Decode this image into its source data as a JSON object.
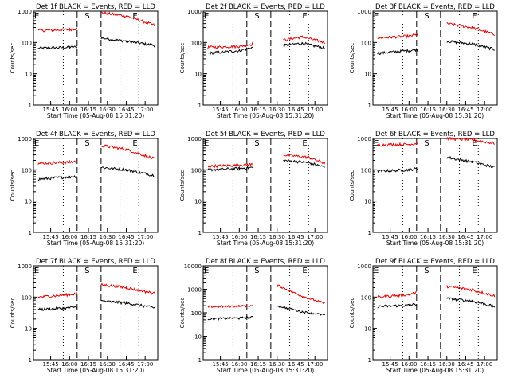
{
  "figure": {
    "xlabel": "Start Time (05-Aug-08 15:31:20)",
    "ylabel": "Counts/sec",
    "xtick_labels": [
      "15:45",
      "16:00",
      "16:15",
      "16:30",
      "16:45",
      "17:00"
    ],
    "colors": {
      "events": "#000000",
      "lld": "#e00000"
    },
    "markers": [
      "E",
      "S",
      "E"
    ]
  },
  "chart_data": [
    {
      "type": "line",
      "title": "Det 1f BLACK = Events, RED = LLD",
      "ylog": true,
      "yticks": [
        "1",
        "10",
        "100",
        "1000"
      ],
      "ylim": [
        1,
        1000
      ],
      "x_range": [
        "15:31:20",
        "17:10:00"
      ],
      "series": [
        {
          "color": "#000000",
          "values": [
            {
              "x": "15:35",
              "y": 65
            },
            {
              "x": "16:00",
              "y": 70
            },
            {
              "x": "16:06",
              "y": 72
            },
            {
              "x": "16:25",
              "y": 140
            },
            {
              "x": "16:45",
              "y": 110
            },
            {
              "x": "17:08",
              "y": 80
            }
          ]
        },
        {
          "color": "#e00000",
          "values": [
            {
              "x": "15:35",
              "y": 240
            },
            {
              "x": "16:00",
              "y": 260
            },
            {
              "x": "16:06",
              "y": 280
            },
            {
              "x": "16:25",
              "y": 900
            },
            {
              "x": "16:45",
              "y": 700
            },
            {
              "x": "17:08",
              "y": 350
            }
          ]
        }
      ]
    },
    {
      "type": "line",
      "title": "Det 2f BLACK = Events, RED = LLD",
      "ylog": true,
      "yticks": [
        "1",
        "10",
        "100",
        "1000"
      ],
      "ylim": [
        1,
        1000
      ],
      "x_range": [
        "15:31:20",
        "17:10:00"
      ],
      "series": [
        {
          "color": "#000000",
          "values": [
            {
              "x": "15:35",
              "y": 45
            },
            {
              "x": "16:00",
              "y": 55
            },
            {
              "x": "16:11",
              "y": 70
            },
            {
              "x": "16:35",
              "y": 80
            },
            {
              "x": "16:50",
              "y": 95
            },
            {
              "x": "17:08",
              "y": 65
            }
          ]
        },
        {
          "color": "#e00000",
          "values": [
            {
              "x": "15:35",
              "y": 70
            },
            {
              "x": "16:00",
              "y": 75
            },
            {
              "x": "16:11",
              "y": 90
            },
            {
              "x": "16:35",
              "y": 120
            },
            {
              "x": "16:50",
              "y": 150
            },
            {
              "x": "17:08",
              "y": 100
            }
          ]
        }
      ]
    },
    {
      "type": "line",
      "title": "Det 3f BLACK = Events, RED = LLD",
      "ylog": true,
      "yticks": [
        "1",
        "10",
        "100",
        "1000"
      ],
      "ylim": [
        1,
        1000
      ],
      "x_range": [
        "15:31:20",
        "17:10:00"
      ],
      "series": [
        {
          "color": "#000000",
          "values": [
            {
              "x": "15:35",
              "y": 45
            },
            {
              "x": "16:00",
              "y": 55
            },
            {
              "x": "16:07",
              "y": 60
            },
            {
              "x": "16:30",
              "y": 110
            },
            {
              "x": "16:50",
              "y": 90
            },
            {
              "x": "17:08",
              "y": 60
            }
          ]
        },
        {
          "color": "#e00000",
          "values": [
            {
              "x": "15:35",
              "y": 140
            },
            {
              "x": "16:00",
              "y": 160
            },
            {
              "x": "16:07",
              "y": 180
            },
            {
              "x": "16:30",
              "y": 400
            },
            {
              "x": "16:50",
              "y": 300
            },
            {
              "x": "17:08",
              "y": 180
            }
          ]
        }
      ]
    },
    {
      "type": "line",
      "title": "Det 4f BLACK = Events, RED = LLD",
      "ylog": true,
      "yticks": [
        "1",
        "10",
        "100",
        "1000"
      ],
      "ylim": [
        1,
        1000
      ],
      "x_range": [
        "15:31:20",
        "17:10:00"
      ],
      "series": [
        {
          "color": "#000000",
          "values": [
            {
              "x": "15:35",
              "y": 50
            },
            {
              "x": "16:00",
              "y": 60
            },
            {
              "x": "16:06",
              "y": 62
            },
            {
              "x": "16:25",
              "y": 120
            },
            {
              "x": "16:45",
              "y": 100
            },
            {
              "x": "17:08",
              "y": 65
            }
          ]
        },
        {
          "color": "#e00000",
          "values": [
            {
              "x": "15:35",
              "y": 160
            },
            {
              "x": "16:00",
              "y": 175
            },
            {
              "x": "16:06",
              "y": 190
            },
            {
              "x": "16:25",
              "y": 600
            },
            {
              "x": "16:45",
              "y": 450
            },
            {
              "x": "17:08",
              "y": 220
            }
          ]
        }
      ]
    },
    {
      "type": "line",
      "title": "Det 5f BLACK = Events, RED = LLD",
      "ylog": true,
      "yticks": [
        "1",
        "10",
        "100",
        "1000"
      ],
      "ylim": [
        1,
        1000
      ],
      "x_range": [
        "15:31:20",
        "17:10:00"
      ],
      "series": [
        {
          "color": "#000000",
          "values": [
            {
              "x": "15:35",
              "y": 100
            },
            {
              "x": "16:00",
              "y": 110
            },
            {
              "x": "16:11",
              "y": 120
            },
            {
              "x": "16:35",
              "y": 200
            },
            {
              "x": "16:55",
              "y": 170
            },
            {
              "x": "17:08",
              "y": 120
            }
          ]
        },
        {
          "color": "#e00000",
          "values": [
            {
              "x": "15:35",
              "y": 130
            },
            {
              "x": "16:00",
              "y": 140
            },
            {
              "x": "16:11",
              "y": 150
            },
            {
              "x": "16:35",
              "y": 300
            },
            {
              "x": "16:55",
              "y": 250
            },
            {
              "x": "17:08",
              "y": 160
            }
          ]
        }
      ]
    },
    {
      "type": "line",
      "title": "Det 6f BLACK = Events, RED = LLD",
      "ylog": true,
      "yticks": [
        "1",
        "10",
        "100",
        "1000"
      ],
      "ylim": [
        1,
        1000
      ],
      "x_range": [
        "15:31:20",
        "17:10:00"
      ],
      "series": [
        {
          "color": "#000000",
          "values": [
            {
              "x": "15:35",
              "y": 90
            },
            {
              "x": "16:00",
              "y": 100
            },
            {
              "x": "16:07",
              "y": 110
            },
            {
              "x": "16:30",
              "y": 250
            },
            {
              "x": "16:50",
              "y": 180
            },
            {
              "x": "17:08",
              "y": 120
            }
          ]
        },
        {
          "color": "#e00000",
          "values": [
            {
              "x": "15:35",
              "y": 620
            },
            {
              "x": "16:00",
              "y": 650
            },
            {
              "x": "16:07",
              "y": 700
            },
            {
              "x": "16:30",
              "y": 1000
            },
            {
              "x": "16:50",
              "y": 900
            },
            {
              "x": "17:08",
              "y": 700
            }
          ]
        }
      ]
    },
    {
      "type": "line",
      "title": "Det 7f BLACK = Events, RED = LLD",
      "ylog": true,
      "yticks": [
        "1",
        "10",
        "100",
        "1000"
      ],
      "ylim": [
        1,
        1000
      ],
      "x_range": [
        "15:31:20",
        "17:10:00"
      ],
      "series": [
        {
          "color": "#000000",
          "values": [
            {
              "x": "15:35",
              "y": 40
            },
            {
              "x": "16:00",
              "y": 45
            },
            {
              "x": "16:06",
              "y": 50
            },
            {
              "x": "16:25",
              "y": 75
            },
            {
              "x": "16:45",
              "y": 65
            },
            {
              "x": "17:08",
              "y": 45
            }
          ]
        },
        {
          "color": "#e00000",
          "values": [
            {
              "x": "15:35",
              "y": 100
            },
            {
              "x": "16:00",
              "y": 120
            },
            {
              "x": "16:06",
              "y": 130
            },
            {
              "x": "16:25",
              "y": 250
            },
            {
              "x": "16:45",
              "y": 200
            },
            {
              "x": "17:08",
              "y": 130
            }
          ]
        }
      ]
    },
    {
      "type": "line",
      "title": "Det 8f BLACK = Events, RED = LLD",
      "ylog": true,
      "yticks": [
        "1",
        "10",
        "100",
        "1000",
        "10000"
      ],
      "ylim": [
        1,
        10000
      ],
      "x_range": [
        "15:31:20",
        "17:10:00"
      ],
      "series": [
        {
          "color": "#000000",
          "values": [
            {
              "x": "15:35",
              "y": 55
            },
            {
              "x": "16:00",
              "y": 60
            },
            {
              "x": "16:11",
              "y": 65
            },
            {
              "x": "16:30",
              "y": 200
            },
            {
              "x": "16:50",
              "y": 110
            },
            {
              "x": "17:08",
              "y": 80
            }
          ]
        },
        {
          "color": "#e00000",
          "values": [
            {
              "x": "15:35",
              "y": 180
            },
            {
              "x": "16:00",
              "y": 190
            },
            {
              "x": "16:11",
              "y": 200
            },
            {
              "x": "16:30",
              "y": 1500
            },
            {
              "x": "16:50",
              "y": 500
            },
            {
              "x": "17:08",
              "y": 250
            }
          ]
        }
      ]
    },
    {
      "type": "line",
      "title": "Det 9f BLACK = Events, RED = LLD",
      "ylog": true,
      "yticks": [
        "1",
        "10",
        "100",
        "1000"
      ],
      "ylim": [
        1,
        1000
      ],
      "x_range": [
        "15:31:20",
        "17:10:00"
      ],
      "series": [
        {
          "color": "#000000",
          "values": [
            {
              "x": "15:35",
              "y": 50
            },
            {
              "x": "16:00",
              "y": 55
            },
            {
              "x": "16:06",
              "y": 60
            },
            {
              "x": "16:30",
              "y": 90
            },
            {
              "x": "16:50",
              "y": 75
            },
            {
              "x": "17:08",
              "y": 50
            }
          ]
        },
        {
          "color": "#e00000",
          "values": [
            {
              "x": "15:35",
              "y": 100
            },
            {
              "x": "16:00",
              "y": 120
            },
            {
              "x": "16:06",
              "y": 140
            },
            {
              "x": "16:30",
              "y": 220
            },
            {
              "x": "16:50",
              "y": 170
            },
            {
              "x": "17:08",
              "y": 110
            }
          ]
        }
      ]
    }
  ]
}
